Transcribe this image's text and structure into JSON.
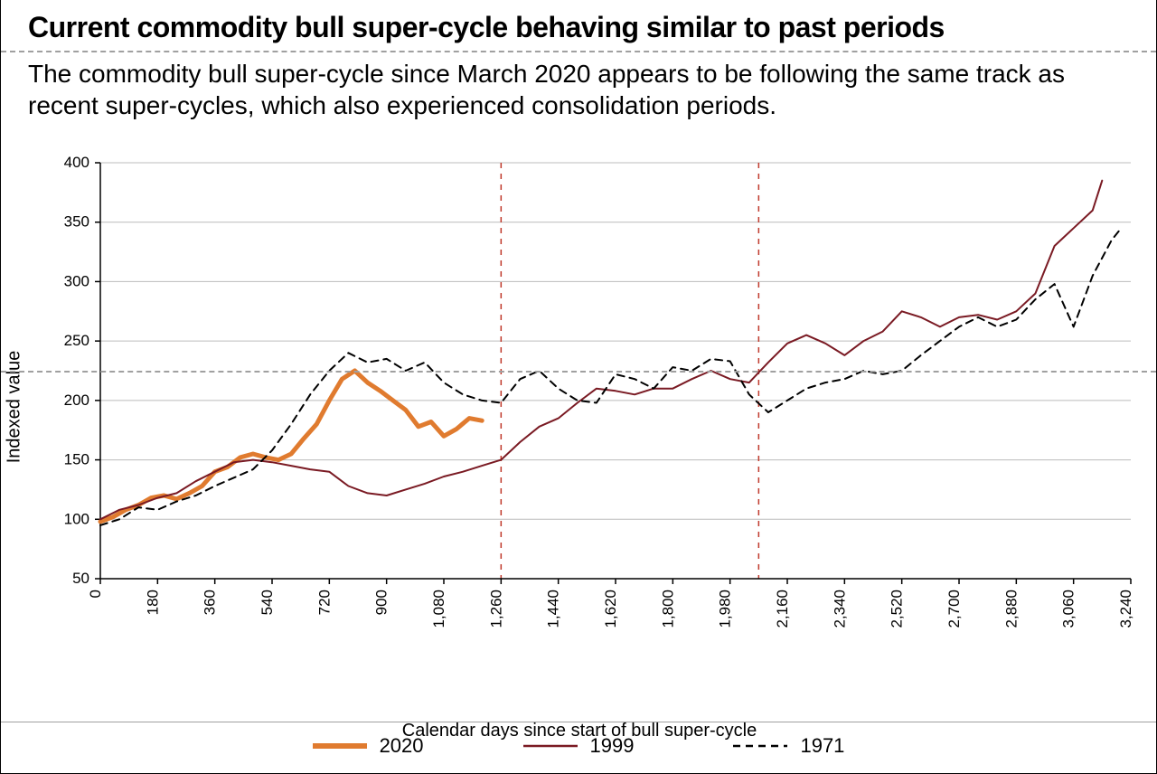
{
  "title": "Current commodity bull super-cycle behaving similar to past periods",
  "subtitle": "The commodity bull super-cycle since March 2020 appears to be following the same track as recent super-cycles, which also experienced consolidation periods.",
  "chart": {
    "type": "line",
    "ylabel": "Indexed value",
    "xlabel": "Calendar days since start of bull super-cycle",
    "xlim": [
      0,
      3240
    ],
    "ylim": [
      50,
      400
    ],
    "ytick_step": 50,
    "yticks": [
      50,
      100,
      150,
      200,
      250,
      300,
      350,
      400
    ],
    "xtick_step": 180,
    "xticks": [
      0,
      180,
      360,
      540,
      720,
      900,
      1080,
      1260,
      1440,
      1620,
      1800,
      1980,
      2160,
      2340,
      2520,
      2700,
      2880,
      3060,
      3240
    ],
    "xtick_labels": [
      "0",
      "180",
      "360",
      "540",
      "720",
      "900",
      "1,080",
      "1,260",
      "1,440",
      "1,620",
      "1,800",
      "1,980",
      "2,160",
      "2,340",
      "2,520",
      "2,700",
      "2,880",
      "3,060",
      "3,240"
    ],
    "vertical_rule_x": [
      1260,
      2070
    ],
    "vertical_rule_color": "#c0392b",
    "vertical_rule_dash": "6,6",
    "background_color": "#ffffff",
    "axis_color": "#000000",
    "grid_color": "#a0a0a0",
    "tick_fontsize": 17,
    "label_fontsize": 20,
    "series": [
      {
        "name": "2020",
        "color": "#e07b2f",
        "stroke_width": 5,
        "dash": null,
        "x": [
          0,
          40,
          80,
          120,
          160,
          200,
          240,
          280,
          320,
          360,
          400,
          440,
          480,
          520,
          560,
          600,
          640,
          680,
          720,
          760,
          800,
          840,
          880,
          920,
          960,
          1000,
          1040,
          1080,
          1120,
          1160,
          1200
        ],
        "y": [
          98,
          102,
          108,
          112,
          118,
          120,
          117,
          122,
          128,
          140,
          144,
          152,
          155,
          152,
          150,
          155,
          168,
          180,
          200,
          218,
          225,
          215,
          208,
          200,
          192,
          178,
          182,
          170,
          176,
          185,
          183
        ]
      },
      {
        "name": "1999",
        "color": "#7a1a23",
        "stroke_width": 2.0,
        "dash": null,
        "x": [
          0,
          60,
          120,
          180,
          240,
          300,
          360,
          420,
          480,
          540,
          600,
          660,
          720,
          780,
          840,
          900,
          960,
          1020,
          1080,
          1140,
          1200,
          1260,
          1320,
          1380,
          1440,
          1500,
          1560,
          1620,
          1680,
          1740,
          1800,
          1860,
          1920,
          1980,
          2040,
          2100,
          2160,
          2220,
          2280,
          2340,
          2400,
          2460,
          2520,
          2580,
          2640,
          2700,
          2760,
          2820,
          2880,
          2940,
          3000,
          3060,
          3120,
          3150
        ],
        "y": [
          100,
          108,
          112,
          118,
          122,
          132,
          140,
          148,
          150,
          148,
          145,
          142,
          140,
          128,
          122,
          120,
          125,
          130,
          136,
          140,
          145,
          150,
          165,
          178,
          185,
          198,
          210,
          208,
          205,
          210,
          210,
          218,
          225,
          218,
          215,
          232,
          248,
          255,
          248,
          238,
          250,
          258,
          275,
          270,
          262,
          270,
          272,
          268,
          275,
          290,
          330,
          345,
          360,
          385
        ]
      },
      {
        "name": "1971",
        "color": "#000000",
        "stroke_width": 2.0,
        "dash": "8,6",
        "x": [
          0,
          60,
          120,
          180,
          240,
          300,
          360,
          420,
          480,
          540,
          600,
          660,
          720,
          780,
          840,
          900,
          960,
          1020,
          1080,
          1140,
          1200,
          1260,
          1320,
          1380,
          1440,
          1500,
          1560,
          1620,
          1680,
          1740,
          1800,
          1860,
          1920,
          1980,
          2040,
          2100,
          2160,
          2220,
          2280,
          2340,
          2400,
          2460,
          2520,
          2580,
          2640,
          2700,
          2760,
          2820,
          2880,
          2940,
          3000,
          3060,
          3120,
          3180,
          3210
        ],
        "y": [
          95,
          100,
          110,
          108,
          115,
          120,
          128,
          135,
          142,
          158,
          180,
          205,
          225,
          240,
          232,
          235,
          225,
          232,
          215,
          205,
          200,
          198,
          218,
          225,
          210,
          200,
          198,
          222,
          218,
          210,
          228,
          225,
          235,
          233,
          205,
          190,
          200,
          210,
          215,
          218,
          225,
          222,
          225,
          238,
          250,
          262,
          270,
          262,
          268,
          285,
          298,
          262,
          305,
          335,
          345
        ]
      }
    ],
    "legend": [
      {
        "label": "2020",
        "color": "#e07b2f",
        "stroke_width": 6,
        "dash": null
      },
      {
        "label": "1999",
        "color": "#7a1a23",
        "stroke_width": 2.5,
        "dash": null
      },
      {
        "label": "1971",
        "color": "#000000",
        "stroke_width": 2.5,
        "dash": "8,6"
      }
    ]
  },
  "layout": {
    "top_dash_y": 56,
    "mid_dash_y": 410,
    "dash_color": "#a0a0a0"
  }
}
